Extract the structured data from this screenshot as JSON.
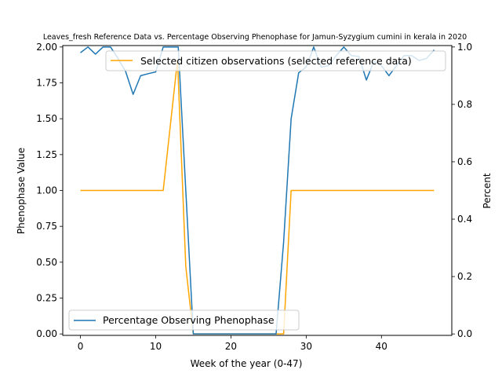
{
  "chart_data": {
    "type": "line",
    "title": "Leaves_fresh Reference Data vs. Percentage Observing Phenophase for Jamun-Syzygium cumini in kerala in 2020",
    "xlabel": "Week of the year (0-47)",
    "ylabel_left": "Phenophase Value",
    "ylabel_right": "Percent",
    "xlim": [
      -2.35,
      49.35
    ],
    "ylim_left": [
      -0.01,
      2.01
    ],
    "ylim_right": [
      -0.005,
      1.005
    ],
    "x_ticks": [
      0,
      10,
      20,
      30,
      40
    ],
    "y_left_ticks": [
      "0.00",
      "0.25",
      "0.50",
      "0.75",
      "1.00",
      "1.25",
      "1.50",
      "1.75",
      "2.00"
    ],
    "y_right_ticks": [
      "0.0",
      "0.2",
      "0.4",
      "0.6",
      "0.8",
      "1.0"
    ],
    "grid": false,
    "series": [
      {
        "name": "Selected citizen observations (selected reference data)",
        "axis": "left",
        "color": "#ffa500",
        "legend_position": "upper-right",
        "x": [
          0,
          11,
          12.9,
          14,
          15,
          27,
          28,
          47
        ],
        "y": [
          1.0,
          1.0,
          1.91,
          0.47,
          0.0,
          0.0,
          1.0,
          1.0
        ]
      },
      {
        "name": "Percentage Observing Phenophase",
        "axis": "right",
        "color": "#1f77b4",
        "legend_position": "lower-left",
        "x": [
          0,
          1,
          2,
          3,
          4,
          5,
          6,
          7,
          8,
          9,
          10,
          11,
          12,
          13,
          14,
          15,
          16,
          17,
          18,
          19,
          20,
          21,
          22,
          23,
          24,
          25,
          26,
          27,
          28,
          29,
          30,
          31,
          32,
          33,
          34,
          35,
          36,
          37,
          38,
          39,
          40,
          41,
          42,
          43,
          44,
          45,
          46,
          47
        ],
        "y": [
          0.98,
          1.0,
          0.975,
          1.0,
          1.0,
          0.96,
          0.915,
          0.835,
          0.9,
          0.907,
          0.913,
          1.0,
          1.0,
          1.0,
          0.5,
          0.0,
          0.0,
          0.0,
          0.0,
          0.0,
          0.0,
          0.0,
          0.0,
          0.0,
          0.0,
          0.0,
          0.0,
          0.32,
          0.75,
          0.91,
          0.93,
          1.0,
          0.93,
          0.935,
          0.97,
          1.0,
          0.97,
          0.967,
          0.885,
          0.95,
          0.935,
          0.9,
          0.935,
          0.97,
          0.97,
          0.953,
          0.96,
          0.99
        ]
      }
    ]
  }
}
